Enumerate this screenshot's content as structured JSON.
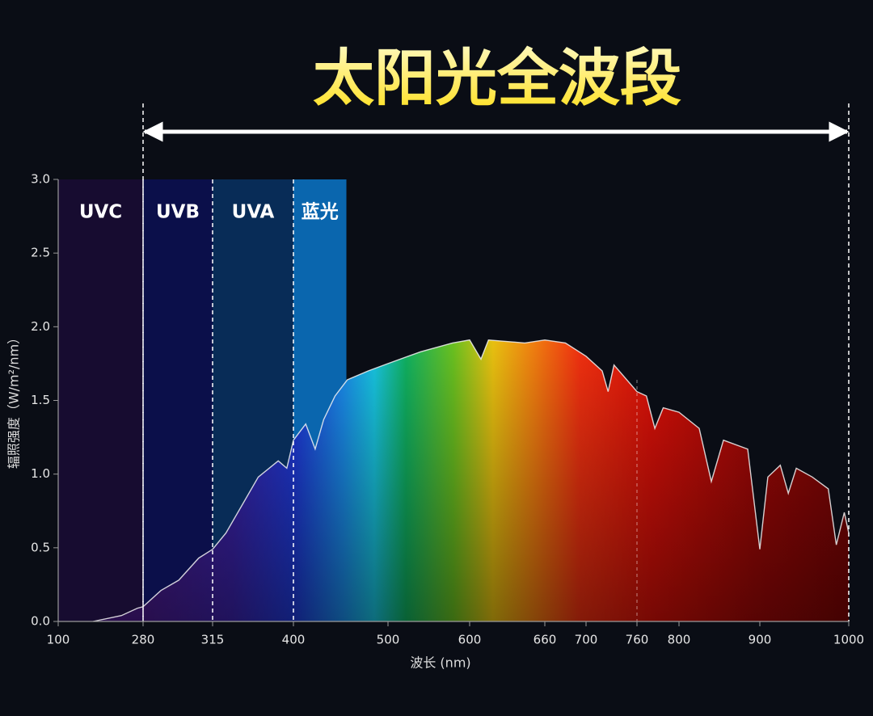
{
  "chart_data": {
    "type": "area",
    "title": "太阳光全波段",
    "x_label": "波长 (nm)",
    "y_label": "辐照强度（W/m²/nm）",
    "range": [
      280,
      1000
    ],
    "highlight_x": 760,
    "bands": [
      {
        "label": "UVC",
        "start": 100,
        "end": 280,
        "color": "#170c30"
      },
      {
        "label": "UVB",
        "start": 280,
        "end": 315,
        "color": "#0b0f4a"
      },
      {
        "label": "UVA",
        "start": 315,
        "end": 400,
        "color": "#082c57"
      },
      {
        "label": "蓝光",
        "start": 400,
        "end": 456,
        "color": "#0a66ae"
      }
    ],
    "x": [
      174,
      234,
      268,
      280,
      289,
      298,
      308,
      315,
      329,
      346,
      363,
      384,
      393,
      400,
      413,
      423,
      432,
      444,
      457,
      479,
      500,
      540,
      579,
      600,
      609,
      615,
      644,
      660,
      680,
      700,
      719,
      726,
      733,
      760,
      769,
      777,
      785,
      800,
      825,
      840,
      855,
      885,
      900,
      909,
      923,
      932,
      941,
      959,
      977,
      986,
      995,
      1000
    ],
    "values": [
      0.0,
      0.04,
      0.09,
      0.1,
      0.21,
      0.28,
      0.43,
      0.49,
      0.6,
      0.79,
      0.98,
      1.09,
      1.04,
      1.23,
      1.34,
      1.17,
      1.37,
      1.53,
      1.64,
      1.7,
      1.75,
      1.83,
      1.89,
      1.91,
      1.78,
      1.91,
      1.89,
      1.91,
      1.89,
      1.8,
      1.7,
      1.56,
      1.74,
      1.56,
      1.53,
      1.31,
      1.45,
      1.42,
      1.31,
      0.95,
      1.23,
      1.17,
      0.49,
      0.98,
      1.06,
      0.87,
      1.04,
      0.98,
      0.9,
      0.52,
      0.74,
      0.6
    ],
    "line_color": "#f2f2f2",
    "xticks": [
      100,
      280,
      315,
      400,
      500,
      600,
      660,
      700,
      760,
      800,
      900,
      1000
    ],
    "ylim": [
      0,
      3
    ],
    "yticks": [
      {
        "value": 0,
        "label": "0.0"
      },
      0.5,
      {
        "value": 1,
        "label": "1.0"
      },
      1.5,
      {
        "value": 2,
        "label": "2.0"
      },
      2.5,
      {
        "value": 3,
        "label": "3.0"
      }
    ]
  }
}
